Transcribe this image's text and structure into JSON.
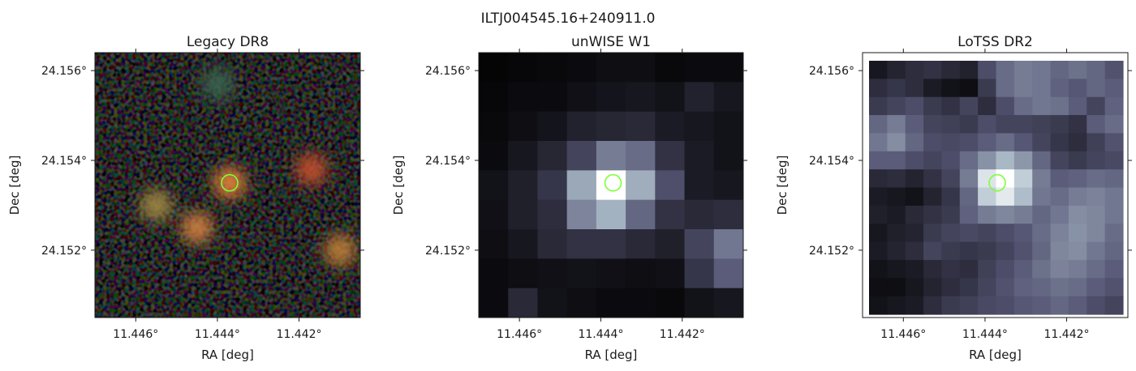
{
  "figure": {
    "title": "ILTJ004545.16+240911.0"
  },
  "chart_data": [
    {
      "type": "heatmap",
      "title": "Legacy DR8",
      "xlabel": "RA [deg]",
      "ylabel": "Dec [deg]",
      "x_tick_labels": [
        "11.446°",
        "11.444°",
        "11.442°"
      ],
      "y_tick_labels": [
        "24.156°",
        "24.154°",
        "24.152°"
      ],
      "x_ticks": [
        11.446,
        11.444,
        11.442
      ],
      "y_ticks": [
        24.156,
        24.154,
        24.152
      ],
      "xlim": [
        11.447,
        11.4405
      ],
      "ylim": [
        24.1505,
        24.1564
      ],
      "x_axis_inverted": true,
      "colormap": "rgb",
      "marker": {
        "shape": "circle",
        "ra": 11.4437,
        "dec": 24.1535,
        "color": "#7fff3a"
      },
      "sources": [
        {
          "ra": 11.4437,
          "dec": 24.1535,
          "color": "#e6843a"
        },
        {
          "ra": 11.4455,
          "dec": 24.153,
          "color": "#a28a44"
        },
        {
          "ra": 11.4445,
          "dec": 24.1525,
          "color": "#d08240"
        },
        {
          "ra": 11.4417,
          "dec": 24.1538,
          "color": "#c4502e"
        },
        {
          "ra": 11.441,
          "dec": 24.152,
          "color": "#c08038"
        },
        {
          "ra": 11.444,
          "dec": 24.1557,
          "color": "#3c6450"
        }
      ]
    },
    {
      "type": "heatmap",
      "title": "unWISE W1",
      "xlabel": "RA [deg]",
      "ylabel": "Dec [deg]",
      "x_tick_labels": [
        "11.446°",
        "11.444°",
        "11.442°"
      ],
      "y_tick_labels": [
        "24.156°",
        "24.154°",
        "24.152°"
      ],
      "x_ticks": [
        11.446,
        11.444,
        11.442
      ],
      "y_ticks": [
        24.156,
        24.154,
        24.152
      ],
      "xlim": [
        11.447,
        11.4405
      ],
      "ylim": [
        24.1505,
        24.1564
      ],
      "x_axis_inverted": true,
      "colormap": "bone",
      "marker": {
        "shape": "circle",
        "ra": 11.4437,
        "dec": 24.1535,
        "color": "#7fff3a"
      },
      "grid": [
        [
          0.02,
          0.03,
          0.04,
          0.05,
          0.06,
          0.06,
          0.04,
          0.05,
          0.05
        ],
        [
          0.03,
          0.05,
          0.05,
          0.07,
          0.09,
          0.1,
          0.08,
          0.15,
          0.1
        ],
        [
          0.04,
          0.06,
          0.09,
          0.15,
          0.17,
          0.18,
          0.12,
          0.1,
          0.08
        ],
        [
          0.05,
          0.1,
          0.17,
          0.3,
          0.52,
          0.46,
          0.22,
          0.12,
          0.08
        ],
        [
          0.08,
          0.14,
          0.24,
          0.68,
          1.0,
          0.7,
          0.35,
          0.12,
          0.1
        ],
        [
          0.07,
          0.14,
          0.2,
          0.55,
          0.72,
          0.44,
          0.22,
          0.18,
          0.2
        ],
        [
          0.06,
          0.1,
          0.18,
          0.22,
          0.22,
          0.18,
          0.14,
          0.3,
          0.5
        ],
        [
          0.05,
          0.06,
          0.07,
          0.08,
          0.07,
          0.06,
          0.07,
          0.24,
          0.4
        ],
        [
          0.05,
          0.18,
          0.08,
          0.06,
          0.05,
          0.05,
          0.04,
          0.08,
          0.1
        ]
      ]
    },
    {
      "type": "heatmap",
      "title": "LoTSS DR2",
      "xlabel": "RA [deg]",
      "ylabel": "Dec [deg]",
      "x_tick_labels": [
        "11.446°",
        "11.444°",
        "11.442°"
      ],
      "y_tick_labels": [
        "24.156°",
        "24.154°",
        "24.152°"
      ],
      "x_ticks": [
        11.446,
        11.444,
        11.442
      ],
      "y_ticks": [
        24.156,
        24.154,
        24.152
      ],
      "xlim": [
        11.447,
        11.4405
      ],
      "ylim": [
        24.1505,
        24.1564
      ],
      "x_axis_inverted": true,
      "colormap": "bone",
      "marker": {
        "shape": "circle",
        "ra": 11.4437,
        "dec": 24.1535,
        "color": "#7fff3a"
      },
      "grid": [
        [
          0.1,
          0.16,
          0.2,
          0.22,
          0.18,
          0.15,
          0.34,
          0.46,
          0.52,
          0.5,
          0.44,
          0.48,
          0.44,
          0.36
        ],
        [
          0.2,
          0.24,
          0.2,
          0.12,
          0.08,
          0.06,
          0.26,
          0.46,
          0.52,
          0.5,
          0.42,
          0.38,
          0.44,
          0.4
        ],
        [
          0.26,
          0.3,
          0.34,
          0.26,
          0.22,
          0.3,
          0.2,
          0.34,
          0.46,
          0.5,
          0.48,
          0.4,
          0.3,
          0.42
        ],
        [
          0.44,
          0.52,
          0.4,
          0.3,
          0.28,
          0.26,
          0.34,
          0.3,
          0.3,
          0.28,
          0.26,
          0.22,
          0.4,
          0.46
        ],
        [
          0.5,
          0.58,
          0.44,
          0.34,
          0.32,
          0.34,
          0.4,
          0.46,
          0.38,
          0.3,
          0.24,
          0.2,
          0.28,
          0.36
        ],
        [
          0.4,
          0.4,
          0.34,
          0.3,
          0.34,
          0.46,
          0.6,
          0.74,
          0.62,
          0.44,
          0.3,
          0.26,
          0.3,
          0.32
        ],
        [
          0.18,
          0.2,
          0.16,
          0.22,
          0.3,
          0.52,
          0.9,
          1.0,
          0.82,
          0.52,
          0.4,
          0.42,
          0.46,
          0.44
        ],
        [
          0.12,
          0.1,
          0.08,
          0.16,
          0.24,
          0.44,
          0.82,
          0.92,
          0.76,
          0.5,
          0.46,
          0.52,
          0.54,
          0.5
        ],
        [
          0.14,
          0.12,
          0.18,
          0.22,
          0.26,
          0.42,
          0.52,
          0.56,
          0.52,
          0.44,
          0.5,
          0.58,
          0.56,
          0.5
        ],
        [
          0.1,
          0.14,
          0.16,
          0.26,
          0.3,
          0.32,
          0.3,
          0.34,
          0.38,
          0.46,
          0.54,
          0.6,
          0.56,
          0.46
        ],
        [
          0.12,
          0.16,
          0.2,
          0.3,
          0.26,
          0.24,
          0.26,
          0.3,
          0.36,
          0.44,
          0.56,
          0.58,
          0.5,
          0.44
        ],
        [
          0.08,
          0.1,
          0.12,
          0.18,
          0.22,
          0.2,
          0.28,
          0.34,
          0.4,
          0.48,
          0.54,
          0.52,
          0.46,
          0.4
        ],
        [
          0.06,
          0.06,
          0.1,
          0.16,
          0.2,
          0.24,
          0.3,
          0.36,
          0.42,
          0.44,
          0.48,
          0.46,
          0.4,
          0.36
        ],
        [
          0.08,
          0.1,
          0.12,
          0.2,
          0.26,
          0.28,
          0.32,
          0.34,
          0.38,
          0.4,
          0.44,
          0.4,
          0.34,
          0.3
        ]
      ]
    }
  ]
}
